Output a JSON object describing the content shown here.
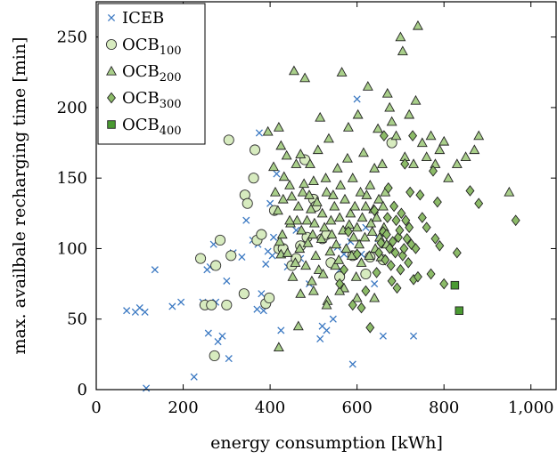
{
  "chart_data": {
    "type": "scatter",
    "xlabel": "energy consumption [kWh]",
    "ylabel": "max. availbale recharging time [min]",
    "xlim": [
      0,
      1060
    ],
    "ylim": [
      0,
      275
    ],
    "xticks": [
      0,
      200,
      400,
      600,
      800,
      1000
    ],
    "xtick_labels": [
      "0",
      "200",
      "400",
      "600",
      "800",
      "1,000"
    ],
    "yticks": [
      0,
      50,
      100,
      150,
      200,
      250
    ],
    "ytick_labels": [
      "0",
      "50",
      "100",
      "150",
      "200",
      "250"
    ],
    "grid": false,
    "legend_position": "top-left",
    "series": [
      {
        "name": "ICEB",
        "name_base": "ICEB",
        "name_sub": "",
        "marker": "x",
        "color": "#3a78c2",
        "points": [
          [
            70,
            56
          ],
          [
            90,
            55
          ],
          [
            100,
            58
          ],
          [
            112,
            55
          ],
          [
            135,
            85
          ],
          [
            115,
            1
          ],
          [
            175,
            59
          ],
          [
            195,
            62
          ],
          [
            225,
            9
          ],
          [
            245,
            62
          ],
          [
            255,
            85
          ],
          [
            258,
            40
          ],
          [
            262,
            87
          ],
          [
            270,
            103
          ],
          [
            275,
            62
          ],
          [
            280,
            34
          ],
          [
            290,
            38
          ],
          [
            300,
            77
          ],
          [
            305,
            22
          ],
          [
            315,
            97
          ],
          [
            335,
            94
          ],
          [
            345,
            120
          ],
          [
            360,
            106
          ],
          [
            370,
            57
          ],
          [
            372,
            103
          ],
          [
            375,
            182
          ],
          [
            380,
            68
          ],
          [
            385,
            56
          ],
          [
            390,
            89
          ],
          [
            395,
            98
          ],
          [
            400,
            132
          ],
          [
            405,
            95
          ],
          [
            408,
            108
          ],
          [
            415,
            153
          ],
          [
            425,
            42
          ],
          [
            440,
            87
          ],
          [
            460,
            113
          ],
          [
            470,
            93
          ],
          [
            490,
            75
          ],
          [
            515,
            36
          ],
          [
            520,
            45
          ],
          [
            530,
            42
          ],
          [
            545,
            50
          ],
          [
            555,
            101
          ],
          [
            560,
            85
          ],
          [
            570,
            96
          ],
          [
            585,
            105
          ],
          [
            590,
            18
          ],
          [
            600,
            206
          ],
          [
            610,
            96
          ],
          [
            620,
            115
          ],
          [
            640,
            75
          ],
          [
            650,
            107
          ],
          [
            660,
            38
          ],
          [
            730,
            38
          ]
        ]
      },
      {
        "name": "OCB100",
        "name_base": "OCB",
        "name_sub": "100",
        "marker": "circle",
        "color": "#d7ebbf",
        "points": [
          [
            240,
            93
          ],
          [
            250,
            60
          ],
          [
            265,
            60
          ],
          [
            272,
            24
          ],
          [
            275,
            88
          ],
          [
            285,
            106
          ],
          [
            300,
            60
          ],
          [
            305,
            177
          ],
          [
            310,
            95
          ],
          [
            340,
            68
          ],
          [
            342,
            138
          ],
          [
            348,
            132
          ],
          [
            362,
            150
          ],
          [
            365,
            170
          ],
          [
            370,
            106
          ],
          [
            380,
            110
          ],
          [
            390,
            61
          ],
          [
            398,
            65
          ],
          [
            410,
            127
          ],
          [
            420,
            100
          ],
          [
            430,
            100
          ],
          [
            450,
            88
          ],
          [
            460,
            93
          ],
          [
            470,
            102
          ],
          [
            480,
            163
          ],
          [
            485,
            108
          ],
          [
            500,
            135
          ],
          [
            505,
            130
          ],
          [
            520,
            107
          ],
          [
            530,
            110
          ],
          [
            540,
            90
          ],
          [
            560,
            80
          ],
          [
            590,
            95
          ],
          [
            620,
            82
          ],
          [
            630,
            94
          ],
          [
            660,
            92
          ],
          [
            680,
            175
          ]
        ]
      },
      {
        "name": "OCB200",
        "name_base": "OCB",
        "name_sub": "200",
        "marker": "triangle",
        "color": "#a9cf8a",
        "points": [
          [
            395,
            183
          ],
          [
            408,
            158
          ],
          [
            412,
            140
          ],
          [
            418,
            127
          ],
          [
            420,
            186
          ],
          [
            422,
            105
          ],
          [
            425,
            96
          ],
          [
            428,
            110
          ],
          [
            432,
            151
          ],
          [
            438,
            166
          ],
          [
            440,
            97
          ],
          [
            445,
            145
          ],
          [
            447,
            118
          ],
          [
            450,
            137
          ],
          [
            452,
            80
          ],
          [
            455,
            226
          ],
          [
            458,
            90
          ],
          [
            460,
            160
          ],
          [
            462,
            120
          ],
          [
            465,
            130
          ],
          [
            468,
            100
          ],
          [
            470,
            167
          ],
          [
            472,
            113
          ],
          [
            475,
            140
          ],
          [
            478,
            146
          ],
          [
            480,
            221
          ],
          [
            482,
            88
          ],
          [
            485,
            120
          ],
          [
            487,
            104
          ],
          [
            490,
            138
          ],
          [
            492,
            160
          ],
          [
            494,
            128
          ],
          [
            496,
            77
          ],
          [
            498,
            110
          ],
          [
            500,
            148
          ],
          [
            502,
            118
          ],
          [
            505,
            95
          ],
          [
            508,
            133
          ],
          [
            510,
            170
          ],
          [
            512,
            85
          ],
          [
            515,
            193
          ],
          [
            518,
            107
          ],
          [
            520,
            125
          ],
          [
            522,
            82
          ],
          [
            525,
            115
          ],
          [
            528,
            150
          ],
          [
            530,
            140
          ],
          [
            532,
            63
          ],
          [
            535,
            178
          ],
          [
            538,
            98
          ],
          [
            540,
            120
          ],
          [
            542,
            110
          ],
          [
            545,
            138
          ],
          [
            548,
            130
          ],
          [
            550,
            88
          ],
          [
            552,
            103
          ],
          [
            555,
            157
          ],
          [
            558,
            92
          ],
          [
            560,
            122
          ],
          [
            562,
            145
          ],
          [
            565,
            225
          ],
          [
            568,
            113
          ],
          [
            570,
            72
          ],
          [
            572,
            135
          ],
          [
            575,
            100
          ],
          [
            578,
            164
          ],
          [
            580,
            186
          ],
          [
            582,
            117
          ],
          [
            585,
            125
          ],
          [
            588,
            95
          ],
          [
            590,
            150
          ],
          [
            592,
            108
          ],
          [
            595,
            130
          ],
          [
            598,
            80
          ],
          [
            600,
            115
          ],
          [
            602,
            195
          ],
          [
            605,
            103
          ],
          [
            608,
            140
          ],
          [
            610,
            90
          ],
          [
            612,
            122
          ],
          [
            615,
            168
          ],
          [
            618,
            108
          ],
          [
            620,
            130
          ],
          [
            622,
            138
          ],
          [
            625,
            215
          ],
          [
            628,
            95
          ],
          [
            630,
            145
          ],
          [
            632,
            118
          ],
          [
            635,
            112
          ],
          [
            638,
            128
          ],
          [
            640,
            157
          ],
          [
            642,
            100
          ],
          [
            645,
            122
          ],
          [
            648,
            185
          ],
          [
            650,
            135
          ],
          [
            652,
            108
          ],
          [
            655,
            94
          ],
          [
            658,
            160
          ],
          [
            660,
            130
          ],
          [
            662,
            115
          ],
          [
            665,
            140
          ],
          [
            668,
            103
          ],
          [
            670,
            210
          ],
          [
            675,
            200
          ],
          [
            680,
            190
          ],
          [
            690,
            180
          ],
          [
            700,
            250
          ],
          [
            705,
            240
          ],
          [
            710,
            165
          ],
          [
            720,
            195
          ],
          [
            730,
            160
          ],
          [
            735,
            205
          ],
          [
            740,
            258
          ],
          [
            750,
            175
          ],
          [
            760,
            165
          ],
          [
            770,
            180
          ],
          [
            780,
            160
          ],
          [
            790,
            170
          ],
          [
            800,
            176
          ],
          [
            810,
            150
          ],
          [
            830,
            160
          ],
          [
            850,
            165
          ],
          [
            870,
            170
          ],
          [
            880,
            180
          ],
          [
            950,
            140
          ],
          [
            640,
            65
          ],
          [
            600,
            65
          ],
          [
            560,
            70
          ],
          [
            530,
            60
          ],
          [
            500,
            70
          ],
          [
            470,
            68
          ],
          [
            445,
            120
          ],
          [
            430,
            135
          ],
          [
            425,
            173
          ],
          [
            420,
            30
          ],
          [
            465,
            45
          ]
        ]
      },
      {
        "name": "OCB300",
        "name_base": "OCB",
        "name_sub": "300",
        "marker": "diamond",
        "color": "#8cbb68",
        "points": [
          [
            560,
            75
          ],
          [
            570,
            85
          ],
          [
            580,
            112
          ],
          [
            590,
            60
          ],
          [
            600,
            96
          ],
          [
            610,
            58
          ],
          [
            620,
            70
          ],
          [
            630,
            44
          ],
          [
            640,
            127
          ],
          [
            645,
            83
          ],
          [
            650,
            97
          ],
          [
            655,
            104
          ],
          [
            660,
            112
          ],
          [
            662,
            180
          ],
          [
            665,
            92
          ],
          [
            668,
            110
          ],
          [
            670,
            122
          ],
          [
            672,
            143
          ],
          [
            675,
            100
          ],
          [
            678,
            88
          ],
          [
            680,
            77
          ],
          [
            682,
            105
          ],
          [
            685,
            130
          ],
          [
            688,
            97
          ],
          [
            690,
            120
          ],
          [
            692,
            72
          ],
          [
            695,
            108
          ],
          [
            698,
            113
          ],
          [
            700,
            85
          ],
          [
            702,
            125
          ],
          [
            705,
            95
          ],
          [
            708,
            100
          ],
          [
            710,
            160
          ],
          [
            712,
            120
          ],
          [
            715,
            107
          ],
          [
            718,
            90
          ],
          [
            720,
            115
          ],
          [
            722,
            140
          ],
          [
            725,
            103
          ],
          [
            728,
            180
          ],
          [
            730,
            78
          ],
          [
            735,
            100
          ],
          [
            740,
            80
          ],
          [
            745,
            138
          ],
          [
            750,
            122
          ],
          [
            760,
            115
          ],
          [
            770,
            82
          ],
          [
            775,
            155
          ],
          [
            780,
            107
          ],
          [
            785,
            133
          ],
          [
            790,
            102
          ],
          [
            800,
            75
          ],
          [
            830,
            97
          ],
          [
            860,
            141
          ],
          [
            880,
            132
          ],
          [
            965,
            120
          ]
        ]
      },
      {
        "name": "OCB400",
        "name_base": "OCB",
        "name_sub": "400",
        "marker": "square",
        "color": "#4a9a32",
        "points": [
          [
            825,
            74
          ],
          [
            835,
            56
          ]
        ]
      }
    ]
  }
}
